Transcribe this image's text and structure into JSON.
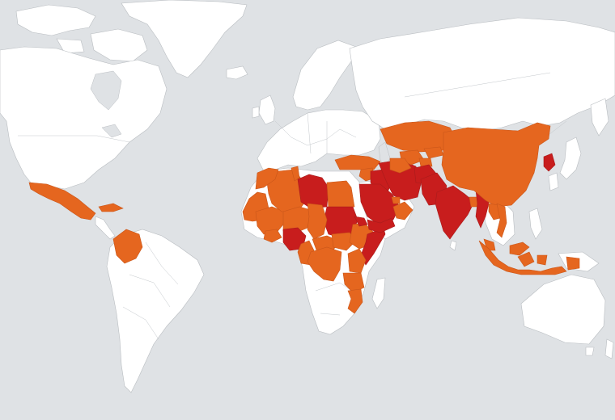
{
  "map": {
    "background_color": "#dfe2e5",
    "land_color": "#ffffff",
    "levels": [
      {
        "id": "high",
        "color": "#e5661f"
      },
      {
        "id": "extreme",
        "color": "#c81d1d"
      }
    ],
    "regions": [
      {
        "id": "mexico",
        "level": "high"
      },
      {
        "id": "cuba",
        "level": "high"
      },
      {
        "id": "colombia",
        "level": "high"
      },
      {
        "id": "mauritania",
        "level": "high"
      },
      {
        "id": "mali",
        "level": "high"
      },
      {
        "id": "algeria",
        "level": "high"
      },
      {
        "id": "morocco",
        "level": "high"
      },
      {
        "id": "tunisia",
        "level": "high"
      },
      {
        "id": "libya",
        "level": "extreme"
      },
      {
        "id": "egypt",
        "level": "high"
      },
      {
        "id": "sudan",
        "level": "extreme"
      },
      {
        "id": "niger",
        "level": "high"
      },
      {
        "id": "burkina-faso",
        "level": "high"
      },
      {
        "id": "nigeria",
        "level": "extreme"
      },
      {
        "id": "cameroon",
        "level": "high"
      },
      {
        "id": "chad",
        "level": "high"
      },
      {
        "id": "car",
        "level": "high"
      },
      {
        "id": "south-sudan",
        "level": "high"
      },
      {
        "id": "ethiopia",
        "level": "high"
      },
      {
        "id": "eritrea",
        "level": "extreme"
      },
      {
        "id": "somalia",
        "level": "extreme"
      },
      {
        "id": "drc",
        "level": "high"
      },
      {
        "id": "kenya",
        "level": "high"
      },
      {
        "id": "tanzania",
        "level": "high"
      },
      {
        "id": "mozambique",
        "level": "high"
      },
      {
        "id": "turkey",
        "level": "high"
      },
      {
        "id": "syria",
        "level": "high"
      },
      {
        "id": "iraq",
        "level": "extreme"
      },
      {
        "id": "iran",
        "level": "extreme"
      },
      {
        "id": "saudi-arabia",
        "level": "extreme"
      },
      {
        "id": "yemen",
        "level": "extreme"
      },
      {
        "id": "oman",
        "level": "high"
      },
      {
        "id": "uae",
        "level": "high"
      },
      {
        "id": "kazakhstan",
        "level": "high"
      },
      {
        "id": "uzbekistan",
        "level": "high"
      },
      {
        "id": "turkmenistan",
        "level": "high"
      },
      {
        "id": "tajikistan",
        "level": "high"
      },
      {
        "id": "kyrgyzstan",
        "level": "high"
      },
      {
        "id": "afghanistan",
        "level": "extreme"
      },
      {
        "id": "pakistan",
        "level": "extreme"
      },
      {
        "id": "india",
        "level": "extreme"
      },
      {
        "id": "bangladesh",
        "level": "high"
      },
      {
        "id": "myanmar",
        "level": "extreme"
      },
      {
        "id": "china",
        "level": "high"
      },
      {
        "id": "north-korea",
        "level": "extreme"
      },
      {
        "id": "laos",
        "level": "high"
      },
      {
        "id": "vietnam",
        "level": "high"
      },
      {
        "id": "malaysia",
        "level": "high"
      },
      {
        "id": "indonesia",
        "level": "high"
      }
    ]
  }
}
